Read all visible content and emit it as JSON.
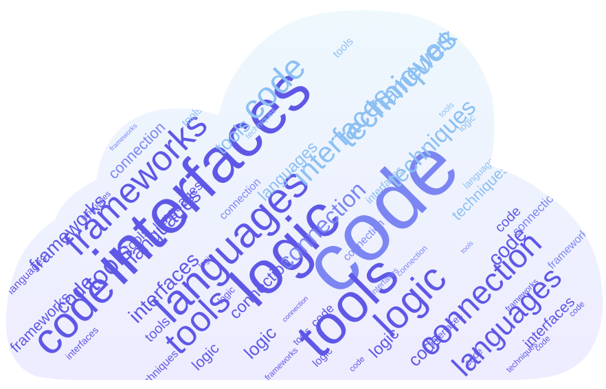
{
  "colors": {
    "background": "#ffffff",
    "cloud_top": "#eef8fd",
    "cloud_bottom": "#eeecff",
    "word_deep": "#5f58e6",
    "word_mid": "#7b86f2",
    "word_light": "#8cc0f3"
  },
  "words": [
    "code",
    "interfaces",
    "logic",
    "languages",
    "tools",
    "techniques",
    "frameworks",
    "connection",
    "code",
    "logic",
    "tools",
    "languages",
    "interfaces",
    "connection",
    "frameworks",
    "techniques",
    "code",
    "tools",
    "code",
    "languages",
    "interfaces",
    "connection",
    "frameworks",
    "code",
    "logic",
    "tools",
    "techniques",
    "languages",
    "connection",
    "interfaces",
    "code",
    "logic",
    "tools",
    "frameworks",
    "connection",
    "languages",
    "code",
    "tools",
    "logic",
    "interfaces",
    "techniques",
    "code",
    "connection",
    "frameworks",
    "tools",
    "languages",
    "logic",
    "interfaces",
    "code",
    "connection",
    "tools",
    "frameworks",
    "logic",
    "languages",
    "techniques",
    "code",
    "interfaces",
    "tools",
    "logic",
    "connection",
    "code",
    "frameworks",
    "languages",
    "tools",
    "interfaces",
    "logic",
    "code",
    "techniques",
    "connection",
    "tools",
    "frameworks"
  ]
}
